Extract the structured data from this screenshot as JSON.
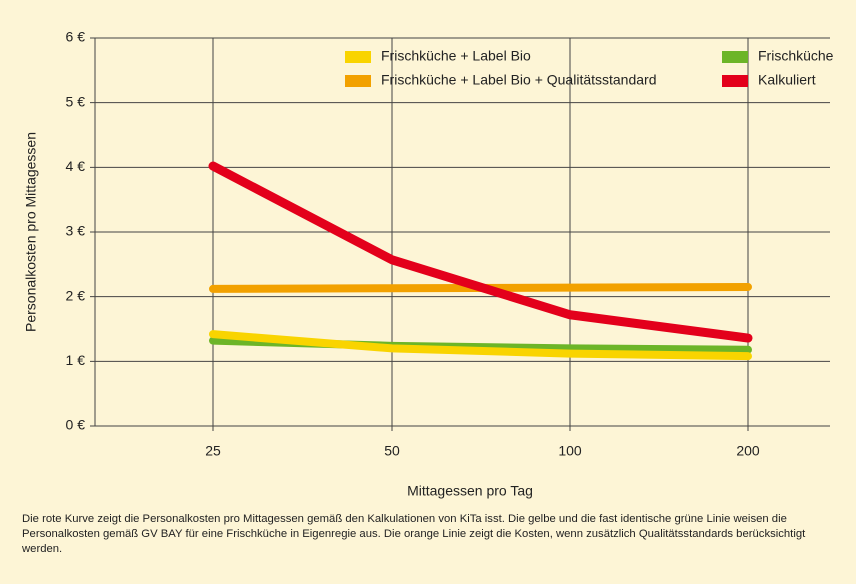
{
  "chart_data": {
    "type": "line",
    "xlabel": "Mittagessen pro Tag",
    "ylabel": "Personalkosten pro Mittagessen",
    "categories": [
      "25",
      "50",
      "100",
      "200"
    ],
    "series": [
      {
        "name": "Frischküche + Label Bio",
        "color": "#f9d400",
        "values": [
          1.42,
          1.2,
          1.12,
          1.08
        ]
      },
      {
        "name": "Frischküche + Label Bio + Qualitätsstandard",
        "color": "#f2a100",
        "values": [
          2.12,
          2.13,
          2.14,
          2.15
        ]
      },
      {
        "name": "Frischküche",
        "color": "#6cb528",
        "values": [
          1.32,
          1.24,
          1.2,
          1.18
        ]
      },
      {
        "name": "Kalkuliert",
        "color": "#e3001b",
        "values": [
          4.02,
          2.57,
          1.72,
          1.36
        ]
      }
    ],
    "ylim": [
      0,
      6
    ],
    "yticks": [
      {
        "value": 0,
        "label": "0 €"
      },
      {
        "value": 1,
        "label": "1 €"
      },
      {
        "value": 2,
        "label": "2 €"
      },
      {
        "value": 3,
        "label": "3 €"
      },
      {
        "value": 4,
        "label": "4 €"
      },
      {
        "value": 5,
        "label": "5 €"
      },
      {
        "value": 6,
        "label": "6 €"
      }
    ],
    "grid": true,
    "legend": "top",
    "caption": "Die rote Kurve zeigt die Personalkosten pro Mittagessen gemäß den Kalkulationen von KiTa isst. Die gelbe und die fast identische grüne Linie weisen die Personalkosten gemäß GV BAY für eine Frischküche in Eigenregie aus. Die orange Linie zeigt die Kosten, wenn zusätzlich Qualitätsstandards berücksichtigt werden."
  }
}
